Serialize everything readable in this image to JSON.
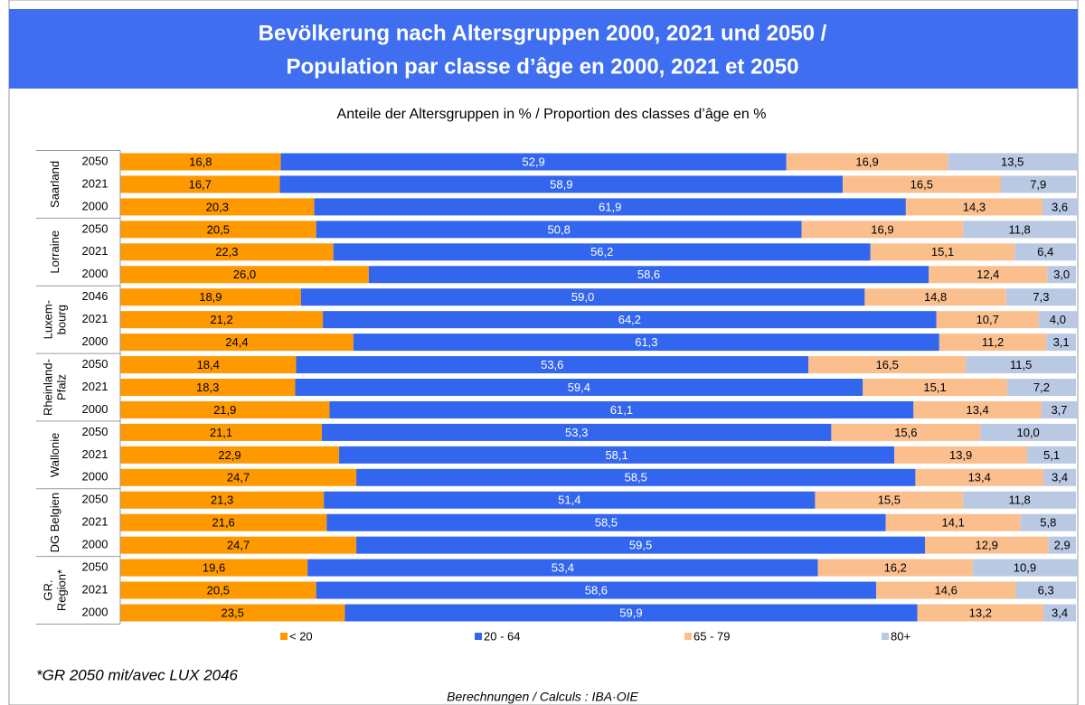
{
  "chart_data": {
    "type": "stacked_barh",
    "title": [
      "Bevölkerung nach Altersgruppen 2000, 2021 und 2050 /",
      "Population par classe d’âge en 2000, 2021 et 2050"
    ],
    "subtitle": "Anteile der Altersgruppen in % / Proportion des classes d’âge en %",
    "groups": [
      [
        "Saarland"
      ],
      [
        "Lorraine"
      ],
      [
        "Luxem-",
        "bourg"
      ],
      [
        "Rheinland-",
        "Pfalz"
      ],
      [
        "Wallonie"
      ],
      [
        "DG Belgien"
      ],
      [
        "GR.",
        "Region*"
      ]
    ],
    "categories": [
      "2050",
      "2021",
      "2000",
      "2050",
      "2021",
      "2000",
      "2046",
      "2021",
      "2000",
      "2050",
      "2021",
      "2000",
      "2050",
      "2021",
      "2000",
      "2050",
      "2021",
      "2000",
      "2050",
      "2021",
      "2000"
    ],
    "xlim": [
      0,
      100
    ],
    "legend": "bottom",
    "series": [
      {
        "name": "< 20",
        "color": "#ff9900",
        "label_color": "#000000",
        "values": [
          16.8,
          16.7,
          20.3,
          20.5,
          22.3,
          26.0,
          18.9,
          21.2,
          24.4,
          18.4,
          18.3,
          21.9,
          21.1,
          22.9,
          24.7,
          21.3,
          21.6,
          24.7,
          19.6,
          20.5,
          23.5
        ],
        "value_labels": [
          "16,8",
          "16,7",
          "20,3",
          "20,5",
          "22,3",
          "26,0",
          "18,9",
          "21,2",
          "24,4",
          "18,4",
          "18,3",
          "21,9",
          "21,1",
          "22,9",
          "24,7",
          "21,3",
          "21,6",
          "24,7",
          "19,6",
          "20,5",
          "23,5"
        ]
      },
      {
        "name": "20 - 64",
        "color": "#3366ee",
        "label_color": "#ffffff",
        "values": [
          52.9,
          58.9,
          61.9,
          50.8,
          56.2,
          58.6,
          59.0,
          64.2,
          61.3,
          53.6,
          59.4,
          61.1,
          53.3,
          58.1,
          58.5,
          51.4,
          58.5,
          59.5,
          53.4,
          58.6,
          59.9
        ],
        "value_labels": [
          "52,9",
          "58,9",
          "61,9",
          "50,8",
          "56,2",
          "58,6",
          "59,0",
          "64,2",
          "61,3",
          "53,6",
          "59,4",
          "61,1",
          "53,3",
          "58,1",
          "58,5",
          "51,4",
          "58,5",
          "59,5",
          "53,4",
          "58,6",
          "59,9"
        ]
      },
      {
        "name": "65 - 79",
        "color": "#fbbf8e",
        "label_color": "#000000",
        "values": [
          16.9,
          16.5,
          14.3,
          16.9,
          15.1,
          12.4,
          14.8,
          10.7,
          11.2,
          16.5,
          15.1,
          13.4,
          15.6,
          13.9,
          13.4,
          15.5,
          14.1,
          12.9,
          16.2,
          14.6,
          13.2
        ],
        "value_labels": [
          "16,9",
          "16,5",
          "14,3",
          "16,9",
          "15,1",
          "12,4",
          "14,8",
          "10,7",
          "11,2",
          "16,5",
          "15,1",
          "13,4",
          "15,6",
          "13,9",
          "13,4",
          "15,5",
          "14,1",
          "12,9",
          "16,2",
          "14,6",
          "13,2"
        ]
      },
      {
        "name": "80+",
        "color": "#b9c9e3",
        "label_color": "#000000",
        "values": [
          13.5,
          7.9,
          3.6,
          11.8,
          6.4,
          3.0,
          7.3,
          4.0,
          3.1,
          11.5,
          7.2,
          3.7,
          10.0,
          5.1,
          3.4,
          11.8,
          5.8,
          2.9,
          10.9,
          6.3,
          3.4
        ],
        "value_labels": [
          "13,5",
          "7,9",
          "3,6",
          "11,8",
          "6,4",
          "3,0",
          "7,3",
          "4,0",
          "3,1",
          "11,5",
          "7,2",
          "3,7",
          "10,0",
          "5,1",
          "3,4",
          "11,8",
          "5,8",
          "2,9",
          "10,9",
          "6,3",
          "3,4"
        ]
      }
    ],
    "footnote": "*GR 2050 mit/avec LUX 2046",
    "source": "Berechnungen / Calculs : IBA·OIE"
  }
}
